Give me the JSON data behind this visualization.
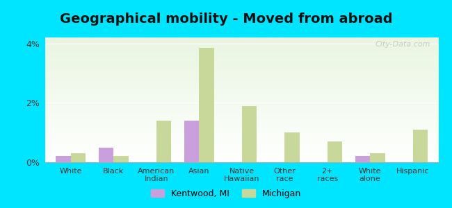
{
  "title": "Geographical mobility - Moved from abroad",
  "categories": [
    "White",
    "Black",
    "American\nIndian",
    "Asian",
    "Native\nHawaiian",
    "Other\nrace",
    "2+\nraces",
    "White\nalone",
    "Hispanic"
  ],
  "kentwood": [
    0.2,
    0.5,
    0.0,
    1.4,
    0.0,
    0.0,
    0.0,
    0.2,
    0.0
  ],
  "michigan": [
    0.3,
    0.2,
    1.4,
    3.85,
    1.9,
    1.0,
    0.7,
    0.3,
    1.1
  ],
  "kentwood_color": "#c9a0dc",
  "michigan_color": "#c8d89a",
  "fig_bg": "#00e5ff",
  "ylim": [
    0,
    4.2
  ],
  "yticks": [
    0,
    2,
    4
  ],
  "ytick_labels": [
    "0%",
    "2%",
    "4%"
  ],
  "bar_width": 0.35,
  "title_fontsize": 14,
  "legend_kentwood": "Kentwood, MI",
  "legend_michigan": "Michigan",
  "watermark": "City-Data.com"
}
